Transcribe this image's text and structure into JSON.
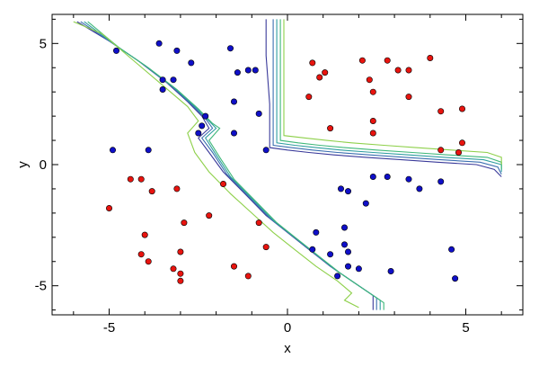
{
  "chart_data": {
    "type": "scatter",
    "title": "",
    "xlabel": "x",
    "ylabel": "y",
    "xlim": [
      -6.6,
      6.6
    ],
    "ylim": [
      -6.2,
      6.2
    ],
    "xticks": [
      -5,
      0,
      5
    ],
    "yticks": [
      -5,
      0,
      5
    ],
    "grid": false,
    "legend": "none",
    "colors": {
      "red_points": "#e8140f",
      "blue_points": "#0f0fc8",
      "point_edge": "#000000",
      "contours": [
        "#3a3a9a",
        "#3b6fb0",
        "#2f9da0",
        "#3fb87a",
        "#8ed04a"
      ]
    },
    "series": [
      {
        "values": [
          [
            -5.0,
            -1.8
          ],
          [
            -4.4,
            -0.6
          ],
          [
            -4.1,
            -0.6
          ],
          [
            -3.8,
            -1.1
          ],
          [
            -3.1,
            -1.0
          ],
          [
            -2.9,
            -2.4
          ],
          [
            -2.2,
            -2.1
          ],
          [
            -1.8,
            -0.8
          ],
          [
            -0.8,
            -2.4
          ],
          [
            -0.6,
            -3.4
          ],
          [
            -4.0,
            -2.9
          ],
          [
            -4.1,
            -3.7
          ],
          [
            -3.9,
            -4.0
          ],
          [
            -3.2,
            -4.3
          ],
          [
            -3.0,
            -3.6
          ],
          [
            -3.0,
            -4.5
          ],
          [
            -3.0,
            -4.8
          ],
          [
            -1.5,
            -4.2
          ],
          [
            -1.1,
            -4.6
          ],
          [
            0.6,
            2.8
          ],
          [
            0.7,
            4.2
          ],
          [
            0.9,
            3.6
          ],
          [
            1.05,
            3.8
          ],
          [
            1.2,
            1.5
          ],
          [
            2.1,
            4.3
          ],
          [
            2.3,
            3.5
          ],
          [
            2.4,
            3.0
          ],
          [
            2.4,
            1.8
          ],
          [
            2.4,
            1.3
          ],
          [
            2.8,
            4.3
          ],
          [
            3.1,
            3.9
          ],
          [
            3.4,
            3.9
          ],
          [
            3.4,
            2.8
          ],
          [
            4.0,
            4.4
          ],
          [
            4.3,
            2.2
          ],
          [
            4.3,
            0.6
          ],
          [
            4.8,
            0.5
          ],
          [
            4.9,
            2.3
          ],
          [
            4.9,
            0.9
          ]
        ]
      },
      {
        "values": [
          [
            -4.8,
            4.7
          ],
          [
            -3.6,
            5.0
          ],
          [
            -3.5,
            3.5
          ],
          [
            -3.5,
            3.1
          ],
          [
            -3.1,
            4.7
          ],
          [
            -3.2,
            3.5
          ],
          [
            -2.7,
            4.2
          ],
          [
            -1.6,
            4.8
          ],
          [
            -1.4,
            3.8
          ],
          [
            -1.1,
            3.9
          ],
          [
            -0.9,
            3.9
          ],
          [
            -1.5,
            2.6
          ],
          [
            -0.8,
            2.1
          ],
          [
            -1.5,
            1.3
          ],
          [
            -2.3,
            2.0
          ],
          [
            -2.4,
            1.6
          ],
          [
            -2.5,
            1.3
          ],
          [
            -4.9,
            0.6
          ],
          [
            -3.9,
            0.6
          ],
          [
            -0.6,
            0.6
          ],
          [
            1.5,
            -1.0
          ],
          [
            1.7,
            -1.1
          ],
          [
            2.2,
            -1.6
          ],
          [
            2.4,
            -0.5
          ],
          [
            2.8,
            -0.5
          ],
          [
            3.4,
            -0.6
          ],
          [
            3.7,
            -1.0
          ],
          [
            4.3,
            -0.7
          ],
          [
            0.8,
            -2.8
          ],
          [
            1.2,
            -3.7
          ],
          [
            1.6,
            -2.6
          ],
          [
            1.6,
            -3.3
          ],
          [
            1.7,
            -4.2
          ],
          [
            1.7,
            -3.6
          ],
          [
            2.0,
            -4.3
          ],
          [
            0.7,
            -3.5
          ],
          [
            1.4,
            -4.6
          ],
          [
            2.9,
            -4.4
          ],
          [
            4.6,
            -3.5
          ],
          [
            4.7,
            -4.7
          ]
        ]
      }
    ],
    "contours": [
      {
        "left": [
          [
            -5.9,
            5.9
          ],
          [
            -5.0,
            5.1
          ],
          [
            -4.2,
            4.3
          ],
          [
            -3.4,
            3.4
          ],
          [
            -2.8,
            2.6
          ],
          [
            -2.4,
            2.0
          ],
          [
            -2.2,
            1.5
          ],
          [
            -2.5,
            1.1
          ],
          [
            -2.2,
            0.5
          ],
          [
            -1.8,
            -0.3
          ],
          [
            -1.2,
            -1.2
          ],
          [
            -0.6,
            -2.1
          ],
          [
            0.0,
            -2.8
          ],
          [
            0.6,
            -3.5
          ],
          [
            1.2,
            -4.2
          ],
          [
            1.8,
            -4.8
          ],
          [
            2.4,
            -5.4
          ],
          [
            2.4,
            -6.0
          ]
        ],
        "right": [
          [
            -0.6,
            6.0
          ],
          [
            -0.6,
            4.5
          ],
          [
            -0.5,
            2.5
          ],
          [
            -0.5,
            0.7
          ],
          [
            0.0,
            0.6
          ],
          [
            0.6,
            0.5
          ],
          [
            1.3,
            0.4
          ],
          [
            2.2,
            0.3
          ],
          [
            3.2,
            0.2
          ],
          [
            4.2,
            0.1
          ],
          [
            5.3,
            0.0
          ],
          [
            5.8,
            -0.2
          ],
          [
            6.0,
            -0.5
          ]
        ]
      },
      {
        "left": [
          [
            -5.8,
            5.9
          ],
          [
            -4.9,
            5.0
          ],
          [
            -4.1,
            4.2
          ],
          [
            -3.3,
            3.3
          ],
          [
            -2.7,
            2.5
          ],
          [
            -2.3,
            1.9
          ],
          [
            -2.1,
            1.5
          ],
          [
            -2.4,
            1.1
          ],
          [
            -2.1,
            0.5
          ],
          [
            -1.7,
            -0.4
          ],
          [
            -1.1,
            -1.3
          ],
          [
            -0.5,
            -2.2
          ],
          [
            0.1,
            -2.9
          ],
          [
            0.7,
            -3.6
          ],
          [
            1.3,
            -4.3
          ],
          [
            1.9,
            -4.9
          ],
          [
            2.5,
            -5.5
          ],
          [
            2.5,
            -6.0
          ]
        ],
        "right": [
          [
            -0.4,
            6.0
          ],
          [
            -0.4,
            4.5
          ],
          [
            -0.4,
            2.5
          ],
          [
            -0.4,
            0.8
          ],
          [
            0.1,
            0.7
          ],
          [
            0.7,
            0.6
          ],
          [
            1.4,
            0.5
          ],
          [
            2.3,
            0.4
          ],
          [
            3.3,
            0.3
          ],
          [
            4.3,
            0.2
          ],
          [
            5.4,
            0.1
          ],
          [
            5.9,
            -0.1
          ],
          [
            6.0,
            -0.4
          ]
        ]
      },
      {
        "left": [
          [
            -5.7,
            5.9
          ],
          [
            -4.8,
            4.9
          ],
          [
            -4.0,
            4.1
          ],
          [
            -3.2,
            3.2
          ],
          [
            -2.6,
            2.4
          ],
          [
            -2.2,
            1.8
          ],
          [
            -2.0,
            1.5
          ],
          [
            -2.3,
            1.1
          ],
          [
            -2.0,
            0.4
          ],
          [
            -1.6,
            -0.5
          ],
          [
            -1.0,
            -1.4
          ],
          [
            -0.4,
            -2.3
          ],
          [
            0.2,
            -3.0
          ],
          [
            0.8,
            -3.7
          ],
          [
            1.4,
            -4.4
          ],
          [
            2.0,
            -5.0
          ],
          [
            2.6,
            -5.6
          ],
          [
            2.6,
            -6.0
          ]
        ],
        "right": [
          [
            -0.3,
            6.0
          ],
          [
            -0.3,
            4.5
          ],
          [
            -0.3,
            2.5
          ],
          [
            -0.3,
            0.9
          ],
          [
            0.2,
            0.8
          ],
          [
            0.8,
            0.7
          ],
          [
            1.5,
            0.6
          ],
          [
            2.4,
            0.5
          ],
          [
            3.4,
            0.4
          ],
          [
            4.4,
            0.3
          ],
          [
            5.5,
            0.2
          ],
          [
            6.0,
            0.0
          ],
          [
            6.0,
            -0.3
          ]
        ]
      },
      {
        "left": [
          [
            -5.6,
            5.9
          ],
          [
            -4.7,
            4.8
          ],
          [
            -3.9,
            4.0
          ],
          [
            -3.1,
            3.1
          ],
          [
            -2.5,
            2.3
          ],
          [
            -2.1,
            1.7
          ],
          [
            -1.9,
            1.5
          ],
          [
            -2.2,
            1.0
          ],
          [
            -1.9,
            0.3
          ],
          [
            -1.5,
            -0.6
          ],
          [
            -0.9,
            -1.5
          ],
          [
            -0.3,
            -2.4
          ],
          [
            0.3,
            -3.1
          ],
          [
            0.9,
            -3.8
          ],
          [
            1.5,
            -4.5
          ],
          [
            2.1,
            -5.1
          ],
          [
            2.7,
            -5.7
          ],
          [
            2.7,
            -6.0
          ]
        ],
        "right": [
          [
            -0.2,
            6.0
          ],
          [
            -0.2,
            4.5
          ],
          [
            -0.2,
            2.5
          ],
          [
            -0.2,
            1.0
          ],
          [
            0.3,
            0.9
          ],
          [
            0.9,
            0.8
          ],
          [
            1.6,
            0.7
          ],
          [
            2.5,
            0.6
          ],
          [
            3.5,
            0.5
          ],
          [
            4.5,
            0.4
          ],
          [
            5.6,
            0.3
          ],
          [
            6.0,
            0.1
          ],
          [
            6.0,
            -0.2
          ]
        ]
      },
      {
        "left": [
          [
            -6.0,
            5.9
          ],
          [
            -5.2,
            5.4
          ],
          [
            -4.4,
            4.4
          ],
          [
            -3.6,
            3.4
          ],
          [
            -2.8,
            2.4
          ],
          [
            -2.5,
            1.8
          ],
          [
            -2.8,
            1.3
          ],
          [
            -2.6,
            0.5
          ],
          [
            -2.2,
            -0.3
          ],
          [
            -1.6,
            -1.2
          ],
          [
            -1.0,
            -2.0
          ],
          [
            -0.4,
            -2.8
          ],
          [
            0.2,
            -3.5
          ],
          [
            0.8,
            -4.2
          ],
          [
            1.4,
            -4.8
          ],
          [
            1.8,
            -5.3
          ],
          [
            1.6,
            -5.6
          ],
          [
            2.0,
            -5.9
          ]
        ],
        "right": [
          [
            -0.1,
            6.0
          ],
          [
            -0.1,
            4.5
          ],
          [
            -0.1,
            2.5
          ],
          [
            -0.1,
            1.2
          ],
          [
            0.5,
            1.1
          ],
          [
            1.1,
            1.0
          ],
          [
            1.8,
            0.9
          ],
          [
            2.7,
            0.8
          ],
          [
            3.6,
            0.7
          ],
          [
            4.6,
            0.6
          ],
          [
            5.6,
            0.5
          ],
          [
            6.0,
            0.3
          ],
          [
            6.0,
            0.0
          ]
        ]
      }
    ]
  }
}
